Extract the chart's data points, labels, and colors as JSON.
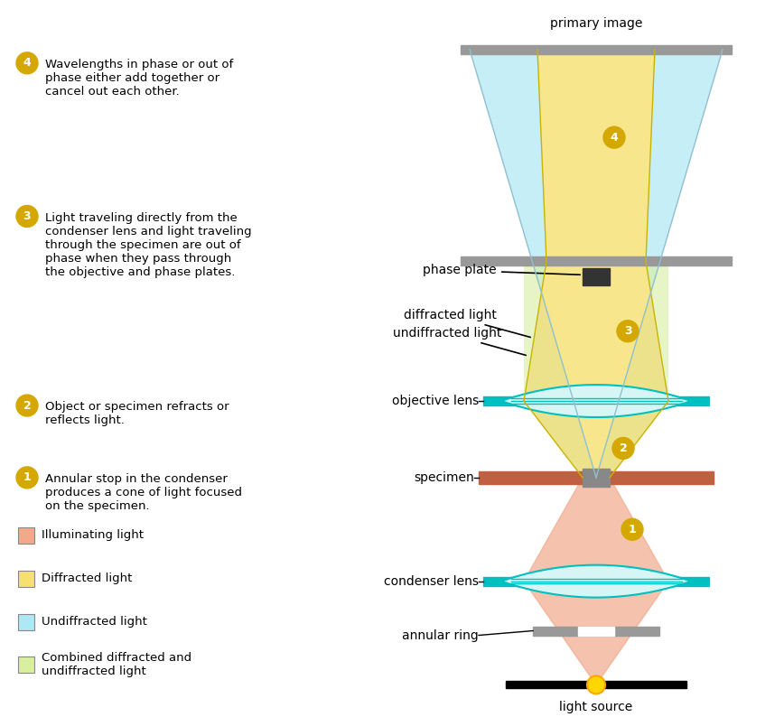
{
  "colors": {
    "illuminating": "#F4A97A",
    "illuminating_fill": "#F2A98B",
    "diffracted": "#F5E070",
    "undiffracted": "#ADE8F4",
    "combined": "#D8EFA0",
    "lens_fill": "#D8F5F5",
    "lens_border": "#00BFBF",
    "specimen_fill": "#C06040",
    "phase_plate": "#444444",
    "gray_bar": "#999999",
    "black": "#000000",
    "white": "#FFFFFF",
    "number_circle": "#D4A800",
    "number_text": "#FFFFFF",
    "label_text": "#000000",
    "light_source_glow": "#FFD700"
  },
  "annotations": {
    "step4_title": "Wavelengths in phase or out of\nphase either add together or\ncancel out each other.",
    "step3_title": "Light traveling directly from the\ncondenser lens and light traveling\nthrough the specimen are out of\nphase when they pass through\nthe objective and phase plates.",
    "step2_title": "Object or specimen refracts or\nreflects light.",
    "step1_title": "Annular stop in the condenser\nproduces a cone of light focused\non the specimen.",
    "legend": [
      {
        "color": "#F2A98B",
        "label": "Illuminating light"
      },
      {
        "color": "#F5E070",
        "label": "Diffracted light"
      },
      {
        "color": "#ADE8F4",
        "label": "Undiffracted light"
      },
      {
        "color": "#D8EFA0",
        "label": "Combined diffracted and\nundiffracted light"
      }
    ]
  }
}
